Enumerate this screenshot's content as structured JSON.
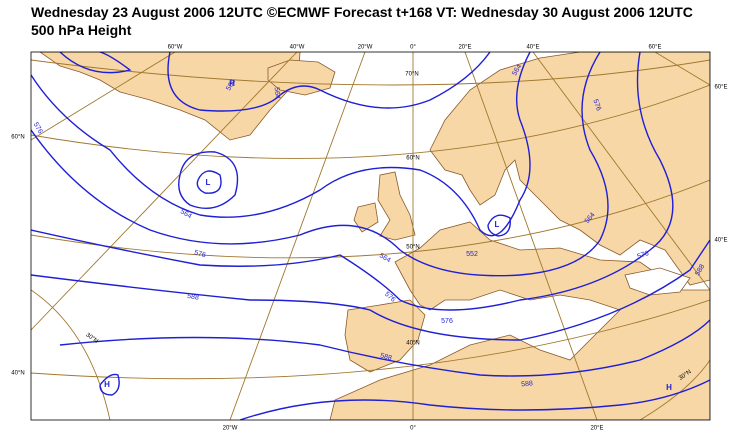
{
  "header": {
    "title": "Wednesday 23 August 2006 12UTC ©ECMWF Forecast t+168 VT: Wednesday 30 August 2006 12UTC",
    "subtitle": "500 hPa Height"
  },
  "map": {
    "graticule_labels": [
      "60°W",
      "40°W",
      "20°W",
      "0°",
      "20°E",
      "40°E",
      "60°E",
      "60°N",
      "40°N",
      "60°E",
      "40°E",
      "20°W",
      "0°",
      "20°E",
      "70°N",
      "60°N",
      "50°N",
      "40°N",
      "30°N",
      "30°N"
    ],
    "contour_labels": [
      "564",
      "564",
      "576",
      "564",
      "576",
      "588",
      "576",
      "576",
      "588",
      "588",
      "564",
      "552",
      "564",
      "576",
      "588",
      "576",
      "564"
    ],
    "centers": [
      "L",
      "L",
      "H",
      "H",
      "H"
    ]
  }
}
